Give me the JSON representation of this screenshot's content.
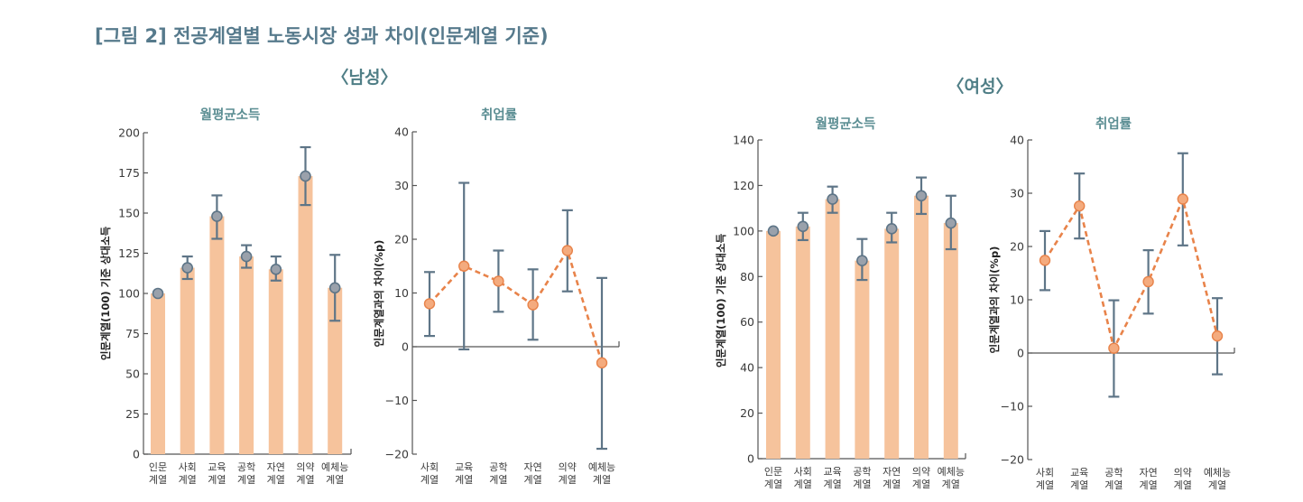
{
  "figure_title": "[그림 2] 전공계열별 노동시장 성과 차이(인문계열 기준)",
  "sections": {
    "male": "〈남성〉",
    "female": "〈여성〉"
  },
  "colors": {
    "title": "#567a8c",
    "bar_fill": "#f6c39c",
    "marker_gray": "#9aa1ab",
    "errorbar": "#5e7587",
    "line_orange": "#e8834a",
    "marker_orange": "#f4ab7e"
  },
  "chart_data": [
    {
      "id": "male-income",
      "group": "남성",
      "type": "bar",
      "title": "월평균소득",
      "ylabel": "인문계열(100) 기준 상대소득",
      "xlabel": "",
      "ylim": [
        0,
        200
      ],
      "yticks": [
        0,
        25,
        50,
        75,
        100,
        125,
        150,
        175,
        200
      ],
      "categories": [
        "인문\n계열",
        "사회\n계열",
        "교육\n계열",
        "공학\n계열",
        "자연\n계열",
        "의약\n계열",
        "예체능\n계열"
      ],
      "values": [
        100,
        116,
        148,
        123,
        115,
        173,
        103.5
      ],
      "ci_low": [
        null,
        109,
        134,
        116,
        108,
        155,
        83
      ],
      "ci_high": [
        null,
        123,
        161,
        130,
        123,
        191,
        124
      ],
      "grid": false
    },
    {
      "id": "male-employment",
      "group": "남성",
      "type": "line",
      "title": "취업률",
      "ylabel": "인문계열과의 차이(%p)",
      "xlabel": "",
      "ylim": [
        -20,
        40
      ],
      "yticks": [
        -20,
        -10,
        0,
        10,
        20,
        30,
        40
      ],
      "categories": [
        "사회\n계열",
        "교육\n계열",
        "공학\n계열",
        "자연\n계열",
        "의약\n계열",
        "예체능\n계열"
      ],
      "values": [
        8,
        15,
        12.2,
        7.8,
        17.9,
        -3
      ],
      "ci_low": [
        2,
        -0.5,
        6.5,
        1.3,
        10.3,
        -19
      ],
      "ci_high": [
        13.9,
        30.5,
        17.9,
        14.4,
        25.4,
        12.8
      ],
      "grid": false
    },
    {
      "id": "female-income",
      "group": "여성",
      "type": "bar",
      "title": "월평균소득",
      "ylabel": "인문계열(100) 기준 상대소득",
      "xlabel": "",
      "ylim": [
        0,
        140
      ],
      "yticks": [
        0,
        20,
        40,
        60,
        80,
        100,
        120,
        140
      ],
      "categories": [
        "인문\n계열",
        "사회\n계열",
        "교육\n계열",
        "공학\n계열",
        "자연\n계열",
        "의약\n계열",
        "예체능\n계열"
      ],
      "values": [
        100,
        102,
        114,
        87,
        101,
        115.5,
        103.5
      ],
      "ci_low": [
        null,
        96,
        108,
        78.5,
        95,
        107.5,
        92
      ],
      "ci_high": [
        null,
        108,
        119.5,
        96.5,
        108,
        123.5,
        115.5
      ],
      "grid": false
    },
    {
      "id": "female-employment",
      "group": "여성",
      "type": "line",
      "title": "취업률",
      "ylabel": "인문계열과의 차이(%p)",
      "xlabel": "",
      "ylim": [
        -20,
        40
      ],
      "yticks": [
        -20,
        -10,
        0,
        10,
        20,
        30,
        40
      ],
      "categories": [
        "사회\n계열",
        "교육\n계열",
        "공학\n계열",
        "자연\n계열",
        "의약\n계열",
        "예체능\n계열"
      ],
      "values": [
        17.4,
        27.6,
        0.9,
        13.4,
        28.9,
        3.2
      ],
      "ci_low": [
        11.8,
        21.5,
        -8.2,
        7.4,
        20.2,
        -4
      ],
      "ci_high": [
        22.9,
        33.7,
        9.9,
        19.3,
        37.5,
        10.3
      ],
      "grid": false
    }
  ]
}
